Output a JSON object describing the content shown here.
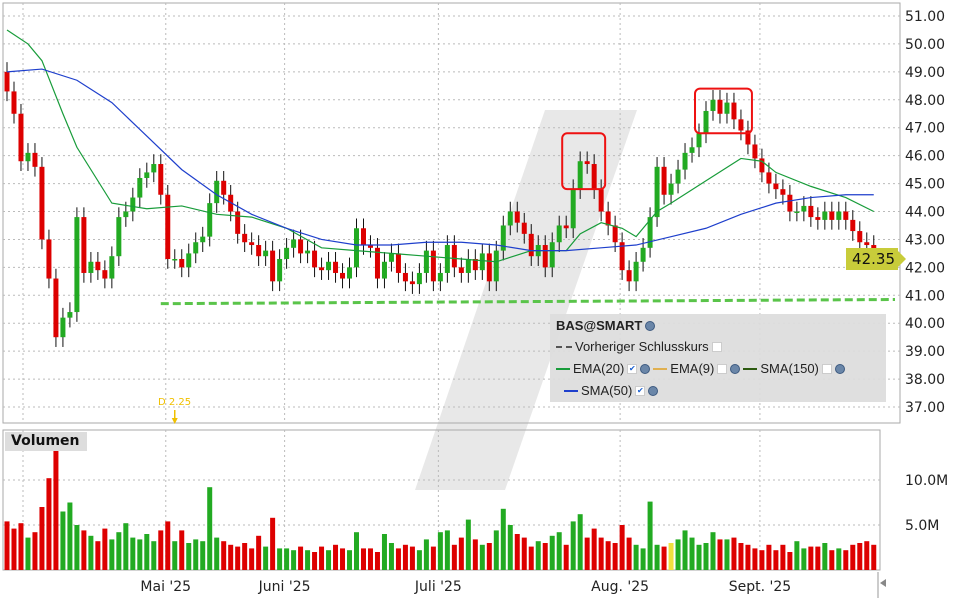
{
  "chart_data": {
    "type": "candlestick",
    "symbol": "BAS@SMART",
    "y_ticks": [
      "37.00",
      "38.00",
      "39.00",
      "40.00",
      "41.00",
      "42.00",
      "43.00",
      "44.00",
      "45.00",
      "46.00",
      "47.00",
      "48.00",
      "49.00",
      "50.00",
      "51.00"
    ],
    "ylim": [
      36.6,
      51.4
    ],
    "first_open": 49.0,
    "close": [
      48.3,
      47.5,
      45.8,
      46.1,
      45.6,
      43.0,
      41.6,
      39.5,
      40.2,
      40.4,
      43.8,
      41.8,
      42.2,
      41.9,
      41.6,
      42.4,
      43.8,
      44.0,
      44.5,
      45.2,
      45.4,
      45.7,
      44.6,
      42.3,
      42.3,
      42.0,
      42.5,
      42.9,
      43.1,
      44.3,
      45.1,
      44.6,
      44.0,
      43.2,
      42.9,
      42.8,
      42.4,
      42.6,
      41.5,
      42.3,
      42.7,
      43.0,
      42.5,
      42.6,
      42.0,
      41.9,
      42.2,
      41.8,
      41.6,
      42.0,
      43.4,
      42.8,
      42.7,
      41.6,
      42.2,
      42.5,
      41.8,
      41.5,
      41.4,
      41.8,
      42.6,
      41.5,
      41.8,
      42.8,
      42.0,
      41.8,
      42.3,
      41.9,
      42.5,
      41.5,
      42.6,
      43.5,
      44.0,
      43.6,
      43.2,
      42.4,
      42.8,
      42.0,
      42.9,
      43.5,
      43.4,
      44.8,
      45.8,
      45.7,
      44.8,
      44.0,
      43.5,
      42.9,
      41.9,
      41.5,
      42.2,
      42.7,
      43.8,
      45.6,
      44.6,
      45.0,
      45.5,
      46.1,
      46.3,
      46.8,
      47.6,
      48.0,
      47.5,
      47.9,
      47.3,
      46.9,
      46.4,
      45.9,
      45.4,
      45.0,
      44.8,
      44.6,
      44.0,
      44.0,
      44.2,
      43.8,
      43.7,
      44.0,
      43.7,
      44.0,
      43.7,
      43.3,
      42.9,
      42.8,
      42.35
    ],
    "volume_millions": [
      5.4,
      4.6,
      5.2,
      3.6,
      4.2,
      7.0,
      10.2,
      15.0,
      6.5,
      7.5,
      5.0,
      4.4,
      3.8,
      3.2,
      4.6,
      3.4,
      4.2,
      5.2,
      3.6,
      3.4,
      4.0,
      3.2,
      4.4,
      5.4,
      3.2,
      4.4,
      3.0,
      3.4,
      3.2,
      9.2,
      3.6,
      3.2,
      2.8,
      2.6,
      3.0,
      2.4,
      3.8,
      2.6,
      5.8,
      2.4,
      2.4,
      2.2,
      2.6,
      2.2,
      2.0,
      2.6,
      2.2,
      2.8,
      2.4,
      2.2,
      4.2,
      2.4,
      2.4,
      2.0,
      4.0,
      3.0,
      2.4,
      2.8,
      2.6,
      2.2,
      3.4,
      2.6,
      4.2,
      4.4,
      2.8,
      3.6,
      5.6,
      3.4,
      2.8,
      3.0,
      4.4,
      6.8,
      5.0,
      4.0,
      3.6,
      2.6,
      3.2,
      3.0,
      3.8,
      4.2,
      2.8,
      5.4,
      6.2,
      3.6,
      4.6,
      3.6,
      3.2,
      3.0,
      5.0,
      3.6,
      2.8,
      2.4,
      7.6,
      2.8,
      2.6,
      3.0,
      3.4,
      4.4,
      3.6,
      2.8,
      3.0,
      4.2,
      3.4,
      3.4,
      3.6,
      3.0,
      2.8,
      2.4,
      2.2,
      2.8,
      2.2,
      2.8,
      2.0,
      3.2,
      2.4,
      2.6,
      2.6,
      3.0,
      2.2,
      2.4,
      2.2,
      2.8,
      3.0,
      3.2,
      2.8
    ],
    "volume_ticks": [
      "5.0M",
      "10.0M"
    ],
    "x_ticks": [
      {
        "label": "Mai '25",
        "index": 23
      },
      {
        "label": "Juni '25",
        "index": 40
      },
      {
        "label": "Juli '25",
        "index": 62
      },
      {
        "label": "Aug. '25",
        "index": 88
      },
      {
        "label": "Sept. '25",
        "index": 108
      }
    ],
    "ema20": [
      [
        0,
        50.5
      ],
      [
        3,
        50.0
      ],
      [
        5,
        49.4
      ],
      [
        8,
        47.5
      ],
      [
        10,
        46.3
      ],
      [
        15,
        44.3
      ],
      [
        20,
        44.1
      ],
      [
        25,
        44.2
      ],
      [
        30,
        43.9
      ],
      [
        35,
        43.8
      ],
      [
        40,
        43.4
      ],
      [
        45,
        42.7
      ],
      [
        50,
        42.6
      ],
      [
        55,
        42.5
      ],
      [
        60,
        42.4
      ],
      [
        65,
        42.3
      ],
      [
        70,
        42.2
      ],
      [
        75,
        42.6
      ],
      [
        80,
        42.6
      ],
      [
        82,
        43.2
      ],
      [
        85,
        43.6
      ],
      [
        88,
        43.4
      ],
      [
        90,
        43.1
      ],
      [
        93,
        44.0
      ],
      [
        95,
        44.3
      ],
      [
        100,
        45.1
      ],
      [
        105,
        45.9
      ],
      [
        108,
        45.8
      ],
      [
        110,
        45.4
      ],
      [
        115,
        44.9
      ],
      [
        120,
        44.5
      ],
      [
        124,
        44.0
      ]
    ],
    "sma50": [
      [
        0,
        49.0
      ],
      [
        5,
        49.1
      ],
      [
        10,
        48.7
      ],
      [
        15,
        47.9
      ],
      [
        20,
        46.7
      ],
      [
        25,
        45.5
      ],
      [
        30,
        44.6
      ],
      [
        35,
        43.9
      ],
      [
        40,
        43.4
      ],
      [
        45,
        43.0
      ],
      [
        50,
        42.8
      ],
      [
        55,
        42.8
      ],
      [
        60,
        42.9
      ],
      [
        65,
        42.9
      ],
      [
        70,
        42.8
      ],
      [
        75,
        42.6
      ],
      [
        80,
        42.6
      ],
      [
        85,
        42.7
      ],
      [
        90,
        42.8
      ],
      [
        95,
        43.1
      ],
      [
        100,
        43.4
      ],
      [
        105,
        43.9
      ],
      [
        110,
        44.3
      ],
      [
        115,
        44.5
      ],
      [
        120,
        44.6
      ],
      [
        124,
        44.6
      ]
    ],
    "support_line": [
      [
        22,
        40.7
      ],
      [
        128,
        40.85
      ]
    ],
    "highlight_boxes": [
      {
        "from": 80,
        "to": 85,
        "low": 44.8,
        "high": 46.8
      },
      {
        "from": 99,
        "to": 106,
        "low": 46.8,
        "high": 48.4
      }
    ],
    "last_price": "42.35",
    "dividend_marker": {
      "label": "D 2.25",
      "index": 24
    },
    "colors": {
      "up": "#22aa22",
      "down": "#dd0000",
      "ema20": "#189c3a",
      "sma50": "#1e3fcc",
      "support": "#5ac44a",
      "last_tag": "#c8cc3a",
      "box": "#ee1111"
    }
  },
  "legend": {
    "title": "BAS@SMART",
    "prev_close": "Vorheriger Schlusskurs",
    "ema20": "EMA(20)",
    "ema9": "EMA(9)",
    "sma150": "SMA(150)",
    "sma50": "SMA(50)"
  },
  "volume_label": "Volumen"
}
